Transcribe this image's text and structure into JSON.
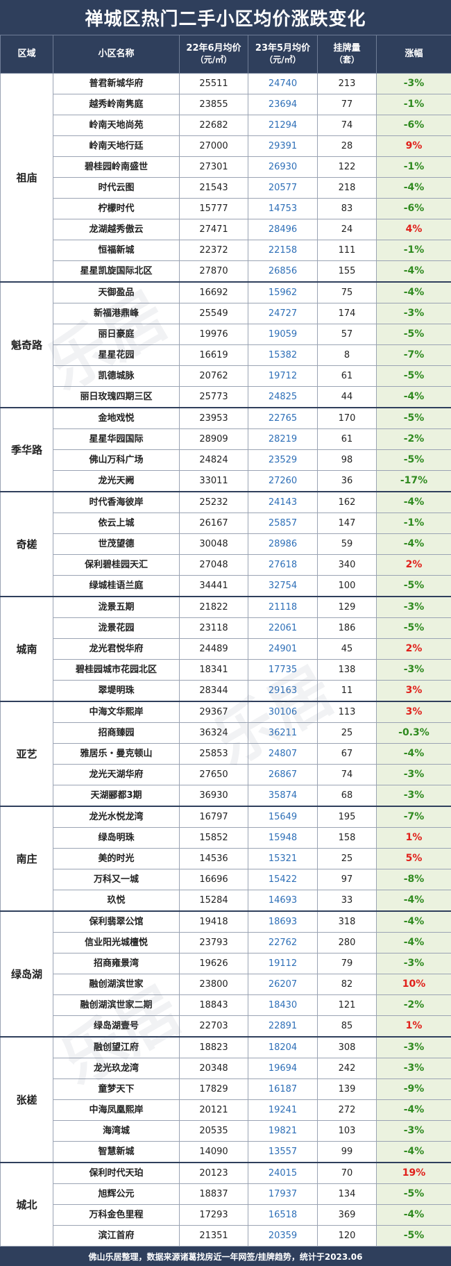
{
  "title": "禅城区热门二手小区均价涨跌变化",
  "header": {
    "district": "区域",
    "name": "小区名称",
    "price22": "22年6月均价",
    "price22_unit": "（元/㎡）",
    "price23": "23年5月均价",
    "price23_unit": "（元/㎡）",
    "listings": "挂牌量",
    "listings_unit": "（套）",
    "change": "涨幅"
  },
  "watermark": "乐居",
  "groups": [
    {
      "district": "祖庙",
      "rows": [
        {
          "name": "普君新城华府",
          "p22": "25511",
          "p23": "24740",
          "list": "213",
          "chg": "-3%",
          "dir": "down"
        },
        {
          "name": "越秀岭南隽庭",
          "p22": "23855",
          "p23": "23694",
          "list": "77",
          "chg": "-1%",
          "dir": "down"
        },
        {
          "name": "岭南天地尚苑",
          "p22": "22682",
          "p23": "21294",
          "list": "74",
          "chg": "-6%",
          "dir": "down"
        },
        {
          "name": "岭南天地行廷",
          "p22": "27000",
          "p23": "29391",
          "list": "28",
          "chg": "9%",
          "dir": "up"
        },
        {
          "name": "碧桂园岭南盛世",
          "p22": "27301",
          "p23": "26930",
          "list": "122",
          "chg": "-1%",
          "dir": "down"
        },
        {
          "name": "时代云图",
          "p22": "21543",
          "p23": "20577",
          "list": "218",
          "chg": "-4%",
          "dir": "down"
        },
        {
          "name": "柠檬时代",
          "p22": "15777",
          "p23": "14753",
          "list": "83",
          "chg": "-6%",
          "dir": "down"
        },
        {
          "name": "龙湖越秀傲云",
          "p22": "27471",
          "p23": "28496",
          "list": "24",
          "chg": "4%",
          "dir": "up"
        },
        {
          "name": "恒福新城",
          "p22": "22372",
          "p23": "22158",
          "list": "111",
          "chg": "-1%",
          "dir": "down"
        },
        {
          "name": "星星凯旋国际北区",
          "p22": "27870",
          "p23": "26856",
          "list": "155",
          "chg": "-4%",
          "dir": "down"
        }
      ]
    },
    {
      "district": "魁奇路",
      "rows": [
        {
          "name": "天御盈品",
          "p22": "16692",
          "p23": "15962",
          "list": "75",
          "chg": "-4%",
          "dir": "down"
        },
        {
          "name": "新福港鼎峰",
          "p22": "25549",
          "p23": "24727",
          "list": "174",
          "chg": "-3%",
          "dir": "down"
        },
        {
          "name": "丽日豪庭",
          "p22": "19976",
          "p23": "19059",
          "list": "57",
          "chg": "-5%",
          "dir": "down"
        },
        {
          "name": "星星花园",
          "p22": "16619",
          "p23": "15382",
          "list": "8",
          "chg": "-7%",
          "dir": "down"
        },
        {
          "name": "凯德城脉",
          "p22": "20762",
          "p23": "19712",
          "list": "61",
          "chg": "-5%",
          "dir": "down"
        },
        {
          "name": "丽日玫瑰四期三区",
          "p22": "25773",
          "p23": "24825",
          "list": "44",
          "chg": "-4%",
          "dir": "down"
        }
      ]
    },
    {
      "district": "季华路",
      "rows": [
        {
          "name": "金地戏悦",
          "p22": "23953",
          "p23": "22765",
          "list": "170",
          "chg": "-5%",
          "dir": "down"
        },
        {
          "name": "星星华园国际",
          "p22": "28909",
          "p23": "28219",
          "list": "61",
          "chg": "-2%",
          "dir": "down"
        },
        {
          "name": "佛山万科广场",
          "p22": "24824",
          "p23": "23529",
          "list": "98",
          "chg": "-5%",
          "dir": "down"
        },
        {
          "name": "龙光天阙",
          "p22": "33011",
          "p23": "27260",
          "list": "36",
          "chg": "-17%",
          "dir": "down"
        }
      ]
    },
    {
      "district": "奇槎",
      "rows": [
        {
          "name": "时代香海彼岸",
          "p22": "25232",
          "p23": "24143",
          "list": "162",
          "chg": "-4%",
          "dir": "down"
        },
        {
          "name": "依云上城",
          "p22": "26167",
          "p23": "25857",
          "list": "147",
          "chg": "-1%",
          "dir": "down"
        },
        {
          "name": "世茂望德",
          "p22": "30048",
          "p23": "28986",
          "list": "59",
          "chg": "-4%",
          "dir": "down"
        },
        {
          "name": "保利碧桂园天汇",
          "p22": "27048",
          "p23": "27618",
          "list": "340",
          "chg": "2%",
          "dir": "up"
        },
        {
          "name": "绿城桂语兰庭",
          "p22": "34441",
          "p23": "32754",
          "list": "100",
          "chg": "-5%",
          "dir": "down"
        }
      ]
    },
    {
      "district": "城南",
      "rows": [
        {
          "name": "泷景五期",
          "p22": "21822",
          "p23": "21118",
          "list": "129",
          "chg": "-3%",
          "dir": "down"
        },
        {
          "name": "泷景花园",
          "p22": "23118",
          "p23": "22061",
          "list": "186",
          "chg": "-5%",
          "dir": "down"
        },
        {
          "name": "龙光君悦华府",
          "p22": "24489",
          "p23": "24901",
          "list": "45",
          "chg": "2%",
          "dir": "up"
        },
        {
          "name": "碧桂园城市花园北区",
          "p22": "18341",
          "p23": "17735",
          "list": "138",
          "chg": "-3%",
          "dir": "down"
        },
        {
          "name": "翠堤明珠",
          "p22": "28344",
          "p23": "29163",
          "list": "11",
          "chg": "3%",
          "dir": "up"
        }
      ]
    },
    {
      "district": "亚艺",
      "rows": [
        {
          "name": "中海文华熙岸",
          "p22": "29367",
          "p23": "30106",
          "list": "113",
          "chg": "3%",
          "dir": "up"
        },
        {
          "name": "招商臻园",
          "p22": "36324",
          "p23": "36211",
          "list": "25",
          "chg": "-0.3%",
          "dir": "down"
        },
        {
          "name": "雅居乐・曼克顿山",
          "p22": "25853",
          "p23": "24807",
          "list": "67",
          "chg": "-4%",
          "dir": "down"
        },
        {
          "name": "龙光天湖华府",
          "p22": "27650",
          "p23": "26867",
          "list": "74",
          "chg": "-3%",
          "dir": "down"
        },
        {
          "name": "天湖郦都3期",
          "p22": "36930",
          "p23": "35874",
          "list": "68",
          "chg": "-3%",
          "dir": "down"
        }
      ]
    },
    {
      "district": "南庄",
      "rows": [
        {
          "name": "龙光水悦龙湾",
          "p22": "16797",
          "p23": "15649",
          "list": "195",
          "chg": "-7%",
          "dir": "down"
        },
        {
          "name": "绿岛明珠",
          "p22": "15852",
          "p23": "15948",
          "list": "158",
          "chg": "1%",
          "dir": "up"
        },
        {
          "name": "美的时光",
          "p22": "14536",
          "p23": "15321",
          "list": "25",
          "chg": "5%",
          "dir": "up"
        },
        {
          "name": "万科又一城",
          "p22": "16696",
          "p23": "15422",
          "list": "97",
          "chg": "-8%",
          "dir": "down"
        },
        {
          "name": "玖悦",
          "p22": "15284",
          "p23": "14693",
          "list": "33",
          "chg": "-4%",
          "dir": "down"
        }
      ]
    },
    {
      "district": "绿岛湖",
      "rows": [
        {
          "name": "保利翡翠公馆",
          "p22": "19418",
          "p23": "18693",
          "list": "318",
          "chg": "-4%",
          "dir": "down"
        },
        {
          "name": "信业阳光城檀悦",
          "p22": "23793",
          "p23": "22762",
          "list": "280",
          "chg": "-4%",
          "dir": "down"
        },
        {
          "name": "招商雍景湾",
          "p22": "19626",
          "p23": "19112",
          "list": "79",
          "chg": "-3%",
          "dir": "down"
        },
        {
          "name": "融创湖滨世家",
          "p22": "23800",
          "p23": "26207",
          "list": "82",
          "chg": "10%",
          "dir": "up"
        },
        {
          "name": "融创湖滨世家二期",
          "p22": "18843",
          "p23": "18430",
          "list": "121",
          "chg": "-2%",
          "dir": "down"
        },
        {
          "name": "绿岛湖壹号",
          "p22": "22703",
          "p23": "22891",
          "list": "85",
          "chg": "1%",
          "dir": "up"
        }
      ]
    },
    {
      "district": "张槎",
      "rows": [
        {
          "name": "融创望江府",
          "p22": "18823",
          "p23": "18204",
          "list": "308",
          "chg": "-3%",
          "dir": "down"
        },
        {
          "name": "龙光玖龙湾",
          "p22": "20348",
          "p23": "19694",
          "list": "242",
          "chg": "-3%",
          "dir": "down"
        },
        {
          "name": "童梦天下",
          "p22": "17829",
          "p23": "16187",
          "list": "139",
          "chg": "-9%",
          "dir": "down"
        },
        {
          "name": "中海凤凰熙岸",
          "p22": "20121",
          "p23": "19241",
          "list": "272",
          "chg": "-4%",
          "dir": "down"
        },
        {
          "name": "海湾城",
          "p22": "20535",
          "p23": "19821",
          "list": "103",
          "chg": "-3%",
          "dir": "down"
        },
        {
          "name": "智慧新城",
          "p22": "14090",
          "p23": "13557",
          "list": "99",
          "chg": "-4%",
          "dir": "down"
        }
      ]
    },
    {
      "district": "城北",
      "rows": [
        {
          "name": "保利时代天珀",
          "p22": "20123",
          "p23": "24015",
          "list": "70",
          "chg": "19%",
          "dir": "up"
        },
        {
          "name": "旭辉公元",
          "p22": "18837",
          "p23": "17937",
          "list": "134",
          "chg": "-5%",
          "dir": "down"
        },
        {
          "name": "万科金色里程",
          "p22": "17293",
          "p23": "16518",
          "list": "369",
          "chg": "-4%",
          "dir": "down"
        },
        {
          "name": "滨江首府",
          "p22": "21351",
          "p23": "20359",
          "list": "120",
          "chg": "-5%",
          "dir": "down"
        }
      ]
    }
  ],
  "footer": "佛山乐居整理，数据来源诸葛找房近一年网签/挂牌趋势，统计于2023.06"
}
